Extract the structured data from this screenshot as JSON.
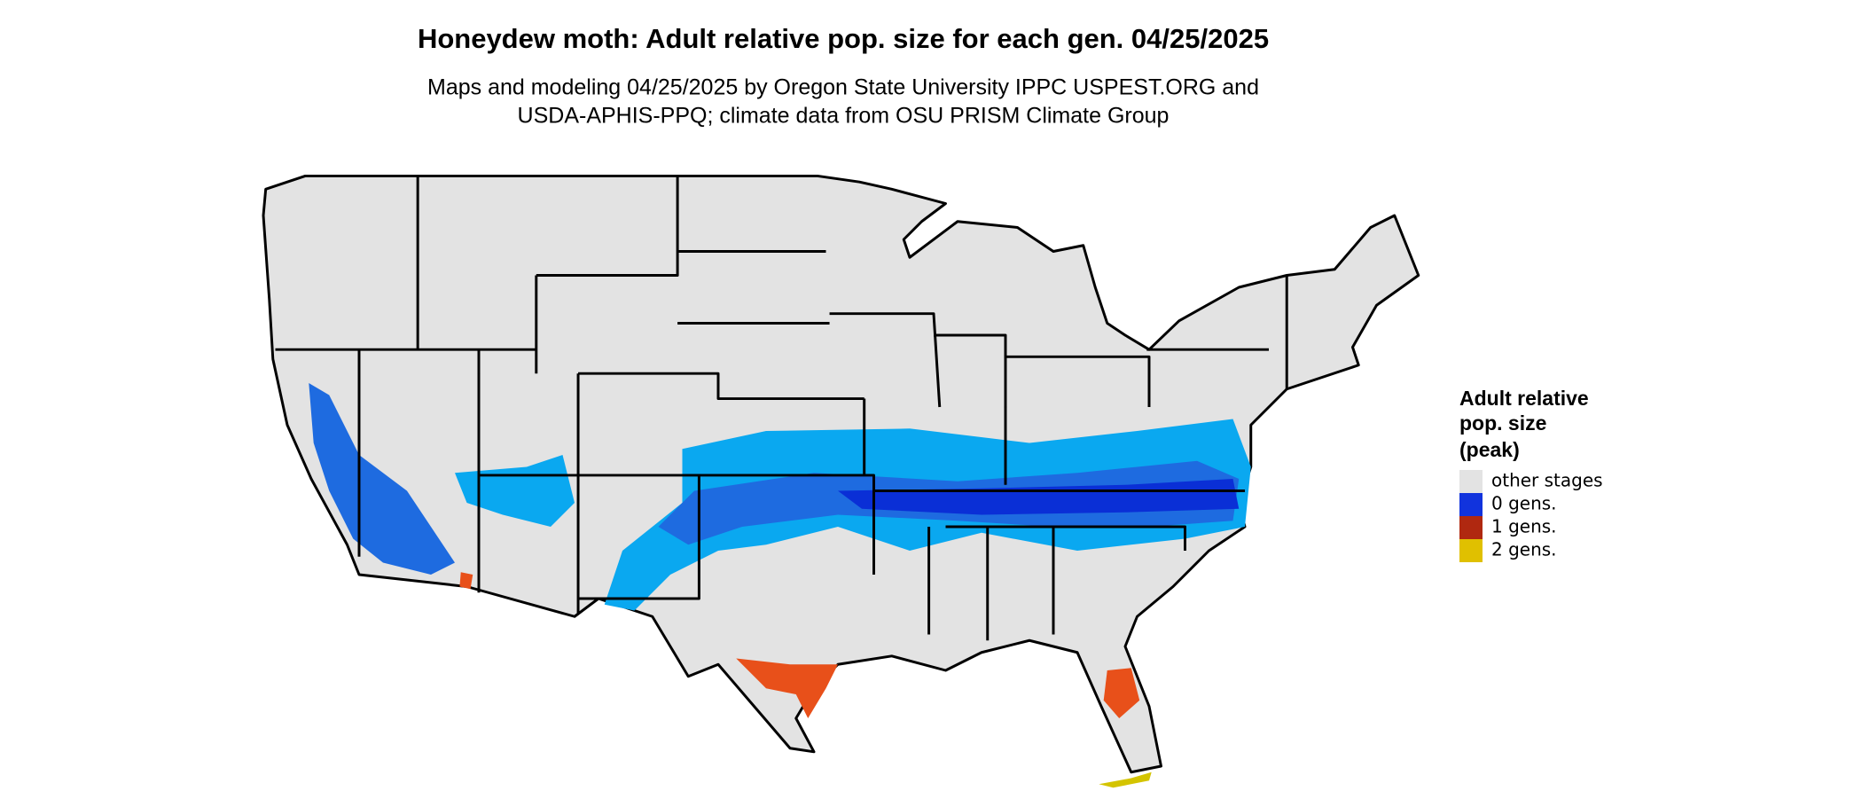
{
  "title": "Honeydew moth: Adult relative pop. size for each gen. 04/25/2025",
  "subtitle": [
    "Maps and modeling 04/25/2025 by Oregon State University IPPC USPEST.ORG and",
    "USDA-APHIS-PPQ; climate data from OSU PRISM Climate Group"
  ],
  "legend": {
    "title": [
      "Adult relative",
      "pop. size",
      "(peak)"
    ],
    "items": [
      {
        "label": "other stages",
        "color": "#e3e3e3"
      },
      {
        "label": "0 gens.",
        "color": "#1133dd"
      },
      {
        "label": "1 gens.",
        "color": "#b02810"
      },
      {
        "label": "2 gens.",
        "color": "#e0c000"
      }
    ]
  }
}
